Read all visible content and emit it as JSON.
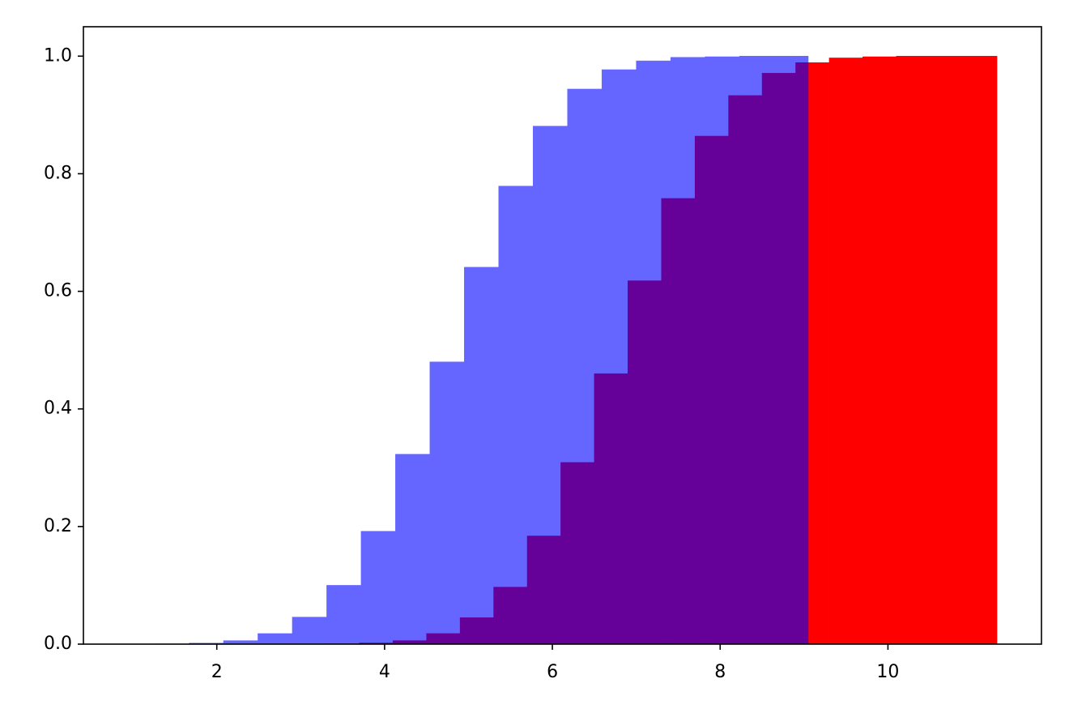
{
  "chart_data": {
    "type": "histogram",
    "cumulative": true,
    "xlim": [
      0.41,
      11.83
    ],
    "ylim": [
      0,
      1.05
    ],
    "xticks": [
      2,
      4,
      6,
      8,
      10
    ],
    "yticks": [
      {
        "value": 0,
        "label": "0.0"
      },
      0.2,
      0.4,
      0.6,
      0.8,
      {
        "value": 1,
        "label": "1.0"
      }
    ],
    "series": [
      {
        "color": "#ff0000",
        "opacity": 1,
        "bins": [
          3.3,
          3.7,
          4.1,
          4.5,
          4.9,
          5.3,
          5.7,
          6.1,
          6.5,
          6.9,
          7.3,
          7.7,
          8.1,
          8.5,
          8.9,
          9.3,
          9.7,
          10.1,
          10.5,
          10.9,
          11.3
        ],
        "values": [
          0.0005,
          0.002,
          0.006,
          0.018,
          0.045,
          0.097,
          0.184,
          0.309,
          0.46,
          0.618,
          0.758,
          0.864,
          0.933,
          0.971,
          0.989,
          0.997,
          0.999,
          1,
          1,
          1
        ]
      },
      {
        "color": "#0000ff",
        "opacity": 0.6,
        "bins": [
          0.85,
          1.26,
          1.67,
          2.08,
          2.49,
          2.9,
          3.31,
          3.72,
          4.13,
          4.54,
          4.95,
          5.36,
          5.77,
          6.18,
          6.59,
          7.0,
          7.41,
          7.82,
          8.23,
          8.64,
          9.05
        ],
        "values": [
          0.0001,
          0.0004,
          0.0018,
          0.006,
          0.018,
          0.046,
          0.1,
          0.192,
          0.323,
          0.48,
          0.641,
          0.779,
          0.881,
          0.944,
          0.977,
          0.992,
          0.998,
          0.999,
          1,
          1
        ]
      }
    ]
  }
}
